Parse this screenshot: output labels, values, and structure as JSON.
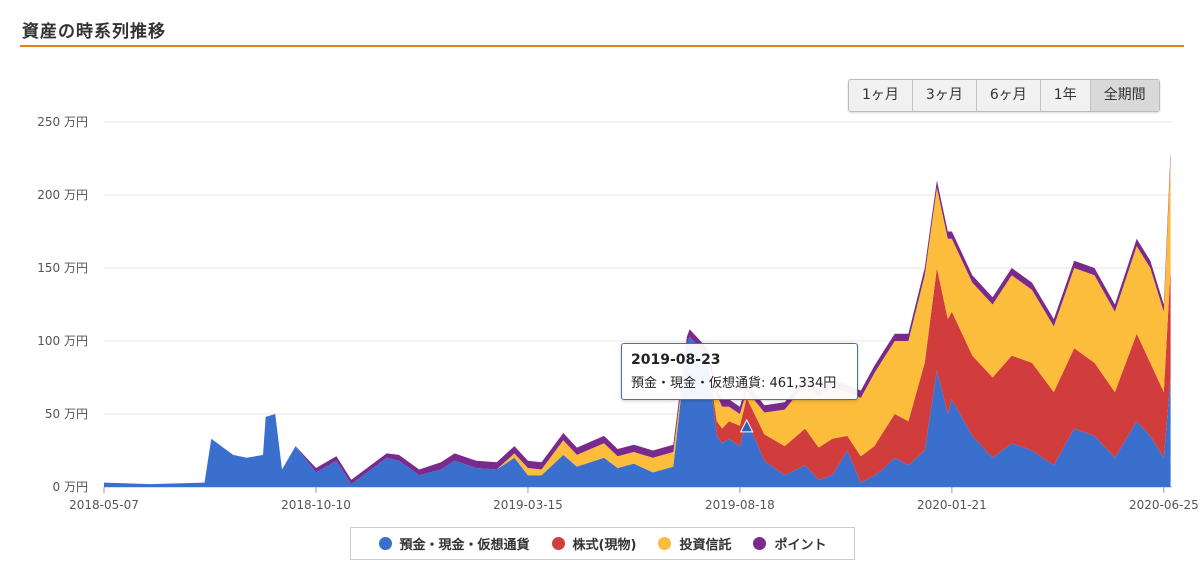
{
  "header": {
    "title": "資産の時系列推移"
  },
  "range_buttons": [
    {
      "label": "1ヶ月",
      "active": false
    },
    {
      "label": "3ヶ月",
      "active": false
    },
    {
      "label": "6ヶ月",
      "active": false
    },
    {
      "label": "1年",
      "active": false
    },
    {
      "label": "全期間",
      "active": true
    }
  ],
  "colors": {
    "cash": "#3a6fcd",
    "stocks": "#d13c3c",
    "funds": "#fbbd3b",
    "points": "#7a2a8c",
    "accent": "#e97d1a"
  },
  "tooltip": {
    "date": "2019-08-23",
    "line": "預金・現金・仮想通貨: 461,334円"
  },
  "legend": [
    {
      "label": "預金・現金・仮想通貨",
      "color": "#3a6fcd"
    },
    {
      "label": "株式(現物)",
      "color": "#d13c3c"
    },
    {
      "label": "投資信託",
      "color": "#fbbd3b"
    },
    {
      "label": "ポイント",
      "color": "#7a2a8c"
    }
  ],
  "chart_data": {
    "type": "area",
    "stacked": true,
    "x_range": [
      "2018-05-07",
      "2020-07-01"
    ],
    "x_ticks": [
      "2018-05-07",
      "2018-10-10",
      "2019-03-15",
      "2019-08-18",
      "2020-01-21",
      "2020-06-25"
    ],
    "y_ticks": [
      "0 万円",
      "50 万円",
      "100 万円",
      "150 万円",
      "200 万円",
      "250 万円"
    ],
    "ylim": [
      0,
      250
    ],
    "y_unit": "万円",
    "grid": true,
    "legend_position": "bottom",
    "x": [
      "2018-05-07",
      "2018-06-10",
      "2018-07-20",
      "2018-07-25",
      "2018-08-10",
      "2018-08-20",
      "2018-09-01",
      "2018-09-03",
      "2018-09-10",
      "2018-09-15",
      "2018-09-25",
      "2018-10-10",
      "2018-10-25",
      "2018-11-05",
      "2018-12-01",
      "2018-12-10",
      "2018-12-25",
      "2019-01-10",
      "2019-01-20",
      "2019-02-05",
      "2019-02-20",
      "2019-03-05",
      "2019-03-15",
      "2019-03-25",
      "2019-04-10",
      "2019-04-20",
      "2019-05-10",
      "2019-05-20",
      "2019-06-01",
      "2019-06-15",
      "2019-06-30",
      "2019-07-10",
      "2019-07-12",
      "2019-07-25",
      "2019-08-01",
      "2019-08-05",
      "2019-08-10",
      "2019-08-18",
      "2019-08-23",
      "2019-09-05",
      "2019-09-20",
      "2019-10-05",
      "2019-10-15",
      "2019-10-25",
      "2019-11-05",
      "2019-11-15",
      "2019-11-25",
      "2019-12-01",
      "2019-12-10",
      "2019-12-20",
      "2020-01-01",
      "2020-01-10",
      "2020-01-18",
      "2020-01-21",
      "2020-02-05",
      "2020-02-20",
      "2020-03-05",
      "2020-03-20",
      "2020-04-05",
      "2020-04-20",
      "2020-05-05",
      "2020-05-20",
      "2020-06-05",
      "2020-06-15",
      "2020-06-25",
      "2020-06-30"
    ],
    "series": [
      {
        "name": "預金・現金・仮想通貨",
        "values": [
          3,
          2,
          3,
          33,
          22,
          20,
          22,
          48,
          50,
          12,
          28,
          10,
          18,
          2,
          20,
          18,
          8,
          12,
          18,
          13,
          12,
          20,
          8,
          8,
          22,
          14,
          20,
          13,
          16,
          10,
          14,
          98,
          103,
          90,
          35,
          30,
          33,
          28,
          46,
          18,
          8,
          15,
          5,
          8,
          25,
          3,
          8,
          12,
          20,
          15,
          25,
          80,
          50,
          60,
          35,
          20,
          30,
          25,
          15,
          40,
          35,
          20,
          45,
          35,
          20,
          75
        ]
      },
      {
        "name": "株式(現物)",
        "values": [
          0,
          0,
          0,
          0,
          0,
          0,
          0,
          0,
          0,
          0,
          0,
          0,
          0,
          0,
          0,
          0,
          0,
          0,
          0,
          0,
          0,
          0,
          0,
          0,
          0,
          0,
          0,
          0,
          0,
          0,
          0,
          0,
          0,
          0,
          10,
          10,
          12,
          14,
          15,
          18,
          20,
          25,
          22,
          25,
          10,
          18,
          20,
          25,
          30,
          30,
          60,
          70,
          65,
          60,
          55,
          55,
          60,
          60,
          50,
          55,
          50,
          45,
          60,
          50,
          45,
          75
        ]
      },
      {
        "name": "投資信託",
        "values": [
          0,
          0,
          0,
          0,
          0,
          0,
          0,
          0,
          0,
          0,
          0,
          0,
          0,
          0,
          0,
          0,
          0,
          0,
          0,
          0,
          0,
          3,
          5,
          4,
          10,
          8,
          10,
          8,
          8,
          10,
          10,
          0,
          0,
          0,
          18,
          15,
          10,
          8,
          5,
          15,
          25,
          30,
          35,
          35,
          30,
          40,
          50,
          50,
          50,
          55,
          60,
          55,
          55,
          50,
          50,
          50,
          55,
          50,
          45,
          55,
          60,
          55,
          60,
          65,
          55,
          75
        ]
      },
      {
        "name": "ポイント",
        "values": [
          0,
          0,
          0,
          0,
          0,
          0,
          0,
          0,
          0,
          0,
          0,
          3,
          3,
          3,
          3,
          4,
          4,
          5,
          5,
          5,
          5,
          5,
          5,
          5,
          5,
          5,
          5,
          5,
          5,
          5,
          5,
          5,
          5,
          5,
          5,
          5,
          5,
          5,
          5,
          5,
          5,
          5,
          5,
          5,
          5,
          5,
          5,
          5,
          5,
          5,
          5,
          5,
          5,
          5,
          5,
          5,
          5,
          5,
          5,
          5,
          5,
          5,
          5,
          5,
          5,
          5
        ]
      }
    ]
  }
}
